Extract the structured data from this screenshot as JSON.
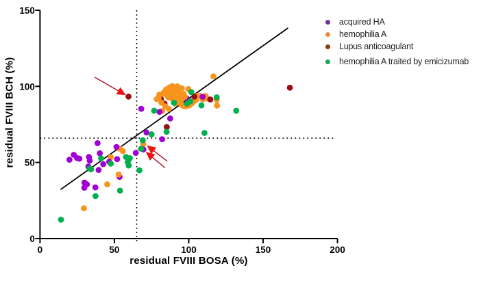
{
  "chart_data": {
    "type": "scatter",
    "title": "",
    "xlabel": "residual FVIII BOSA (%)",
    "ylabel": "residual FVIII BCH (%)",
    "xlim": [
      0,
      200
    ],
    "ylim": [
      0,
      150
    ],
    "x_ticks": [
      0,
      50,
      100,
      150,
      200
    ],
    "y_ticks": [
      0,
      50,
      100,
      150
    ],
    "grid": false,
    "legend_position": "top-right",
    "series": [
      {
        "name": "hemophilia A",
        "color": "#f7941e",
        "legend_color": "#e78e3e",
        "legend_index": 1,
        "points": [
          [
            29.5,
            19.9
          ],
          [
            45.2,
            35.6
          ],
          [
            47.6,
            53.5
          ],
          [
            53.5,
            59.1
          ],
          [
            55.7,
            57.4
          ],
          [
            52.9,
            42.1
          ],
          [
            69.4,
            62.1
          ],
          [
            116.6,
            106.6
          ],
          [
            118.8,
            91.2
          ],
          [
            119.0,
            87.4
          ],
          [
            78.5,
            91.6
          ],
          [
            79.8,
            92.2
          ],
          [
            80.2,
            94.6
          ],
          [
            81.6,
            89.3
          ],
          [
            82.6,
            95.2
          ],
          [
            82.2,
            83.8
          ],
          [
            84.2,
            86.9
          ],
          [
            86.6,
            85.2
          ],
          [
            83.5,
            96.3
          ],
          [
            84.8,
            98.0
          ],
          [
            85.2,
            94.8
          ],
          [
            86.0,
            96.8
          ],
          [
            86.4,
            92.8
          ],
          [
            87.0,
            99.3
          ],
          [
            87.3,
            95.6
          ],
          [
            87.8,
            93.2
          ],
          [
            88.3,
            97.6
          ],
          [
            88.9,
            100.2
          ],
          [
            89.0,
            94.4
          ],
          [
            89.6,
            96.8
          ],
          [
            89.9,
            92.6
          ],
          [
            90.4,
            98.8
          ],
          [
            90.8,
            95.2
          ],
          [
            91.3,
            93.4
          ],
          [
            91.8,
            97.4
          ],
          [
            92.4,
            100.0
          ],
          [
            92.6,
            94.6
          ],
          [
            93.3,
            96.2
          ],
          [
            94.0,
            93.0
          ],
          [
            94.6,
            95.8
          ],
          [
            95.3,
            98.7
          ],
          [
            95.9,
            92.3
          ],
          [
            96.6,
            95.0
          ],
          [
            97.3,
            93.2
          ],
          [
            94.4,
            91.4
          ],
          [
            85.8,
            93.4
          ],
          [
            86.8,
            94.3
          ],
          [
            88.0,
            95.2
          ],
          [
            89.3,
            98.4
          ],
          [
            90.1,
            93.6
          ],
          [
            91.5,
            95.8
          ],
          [
            92.0,
            92.4
          ],
          [
            93.6,
            94.4
          ],
          [
            88.6,
            92.0
          ],
          [
            91.0,
            88.7
          ],
          [
            93.0,
            89.4
          ],
          [
            94.8,
            88.5
          ],
          [
            96.1,
            87.2
          ],
          [
            98.1,
            86.9
          ],
          [
            99.7,
            98.2
          ],
          [
            100.4,
            87.5
          ],
          [
            102.0,
            88.8
          ],
          [
            103.3,
            90.2
          ],
          [
            105.0,
            91.2
          ],
          [
            105.5,
            93.7
          ],
          [
            107.6,
            93.7
          ],
          [
            109.4,
            91.5
          ],
          [
            111.4,
            93.7
          ],
          [
            112.4,
            92.0
          ]
        ]
      },
      {
        "name": "Lupus anticoagulant",
        "color": "#970f12",
        "legend_color": "#8a3c10",
        "legend_index": 2,
        "points": [
          [
            81.3,
            91.6,
            0
          ],
          [
            83.7,
            88.7,
            0
          ],
          [
            59.5,
            93.3
          ],
          [
            85.2,
            73.3
          ],
          [
            103.8,
            93.3
          ],
          [
            114.5,
            91.4
          ],
          [
            168.0,
            99.1
          ]
        ]
      },
      {
        "name": "acquired HA",
        "color": "#a100d4",
        "legend_color": "#7030a0",
        "legend_index": 0,
        "points": [
          [
            53.5,
            40.5,
            0
          ],
          [
            98.5,
            92.2,
            0
          ],
          [
            19.8,
            51.8
          ],
          [
            22.7,
            55.0
          ],
          [
            24.9,
            52.9
          ],
          [
            26.5,
            52.5
          ],
          [
            32.9,
            53.6
          ],
          [
            33.4,
            51.2
          ],
          [
            32.5,
            47.3
          ],
          [
            29.9,
            36.8
          ],
          [
            31.5,
            35.6
          ],
          [
            29.8,
            33.4
          ],
          [
            37.2,
            33.6
          ],
          [
            38.7,
            62.7
          ],
          [
            40.2,
            56.0
          ],
          [
            42.5,
            48.9
          ],
          [
            39.4,
            45.1
          ],
          [
            46.5,
            50.5
          ],
          [
            51.4,
            60.2
          ],
          [
            51.8,
            52.2
          ],
          [
            64.4,
            56.3
          ],
          [
            69.5,
            58.5
          ],
          [
            71.6,
            69.7
          ],
          [
            68.1,
            85.3
          ],
          [
            80.4,
            83.2
          ],
          [
            82.1,
            65.3
          ],
          [
            87.5,
            78.9
          ],
          [
            109.3,
            93.2
          ]
        ]
      },
      {
        "name": "hemophilia A traited by emicizumab",
        "color": "#00af4d",
        "legend_color": "#15a75a",
        "legend_index": 3,
        "points": [
          [
            34.3,
            45.5,
            0
          ],
          [
            14.1,
            12.4
          ],
          [
            33.4,
            46.0
          ],
          [
            37.3,
            27.9
          ],
          [
            41.1,
            52.7
          ],
          [
            47.6,
            49.2
          ],
          [
            53.8,
            31.5
          ],
          [
            57.8,
            53.6
          ],
          [
            60.4,
            52.8
          ],
          [
            59.0,
            50.3
          ],
          [
            59.6,
            48.0
          ],
          [
            66.9,
            44.8
          ],
          [
            69.1,
            64.6
          ],
          [
            68.0,
            59.0
          ],
          [
            75.0,
            68.5
          ],
          [
            76.8,
            84.0
          ],
          [
            85.1,
            70.1
          ],
          [
            90.1,
            89.2
          ],
          [
            98.8,
            88.7
          ],
          [
            101.0,
            90.2
          ],
          [
            101.7,
            96.2
          ],
          [
            108.5,
            87.5
          ],
          [
            110.6,
            69.4
          ],
          [
            118.8,
            92.8
          ],
          [
            131.9,
            84.0
          ]
        ]
      }
    ],
    "trend_line": {
      "x1": 13.8,
      "y1": 32.2,
      "x2": 166.8,
      "y2": 138.4
    },
    "reference_lines": [
      {
        "axis": "x",
        "value": 65,
        "style": "dotted"
      },
      {
        "axis": "y",
        "value": 66,
        "style": "dotted"
      }
    ],
    "annotations": {
      "arrows": [
        {
          "from": [
            36.8,
            106.0
          ],
          "to": [
            57.8,
            94.2
          ]
        },
        {
          "from": [
            85.6,
            50.8
          ],
          "to": [
            71.8,
            61.2
          ]
        },
        {
          "from": [
            84.0,
            46.5
          ],
          "to": [
            71.1,
            57.0
          ]
        }
      ],
      "arrow_line_color": "#a81226",
      "arrow_head_color": "#ee1215"
    },
    "axis_color": "#000000",
    "legend": [
      {
        "label": "acquired HA"
      },
      {
        "label": "hemophilia A"
      },
      {
        "label": "Lupus anticoagulant"
      },
      {
        "label": "hemophilia A traited by emicizumab"
      }
    ]
  }
}
